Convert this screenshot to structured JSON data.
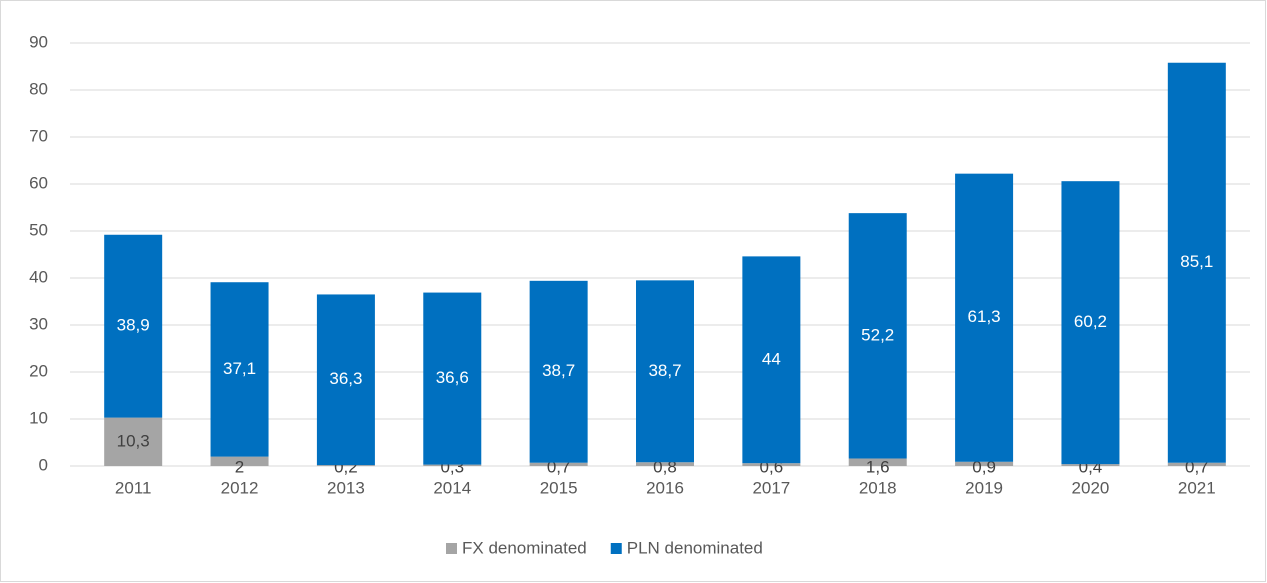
{
  "chart_data": {
    "type": "stacked_bar",
    "categories": [
      "2011",
      "2012",
      "2013",
      "2014",
      "2015",
      "2016",
      "2017",
      "2018",
      "2019",
      "2020",
      "2021"
    ],
    "series": [
      {
        "name": "FX denominated",
        "color": "#a5a5a5",
        "label_color": "#404040",
        "values": [
          10.3,
          2,
          0.2,
          0.3,
          0.7,
          0.8,
          0.6,
          1.6,
          0.9,
          0.4,
          0.7
        ],
        "value_labels": [
          "10,3",
          "2",
          "0,2",
          "0,3",
          "0,7",
          "0,8",
          "0,6",
          "1,6",
          "0,9",
          "0,4",
          "0,7"
        ]
      },
      {
        "name": "PLN denominated",
        "color": "#0070c0",
        "label_color": "#ffffff",
        "values": [
          38.9,
          37.1,
          36.3,
          36.6,
          38.7,
          38.7,
          44,
          52.2,
          61.3,
          60.2,
          85.1
        ],
        "value_labels": [
          "38,9",
          "37,1",
          "36,3",
          "36,6",
          "38,7",
          "38,7",
          "44",
          "52,2",
          "61,3",
          "60,2",
          "85,1"
        ]
      }
    ],
    "ylim": [
      0,
      90
    ],
    "yticks": [
      0,
      10,
      20,
      30,
      40,
      50,
      60,
      70,
      80,
      90
    ],
    "grid": true,
    "legend": "bottom"
  }
}
